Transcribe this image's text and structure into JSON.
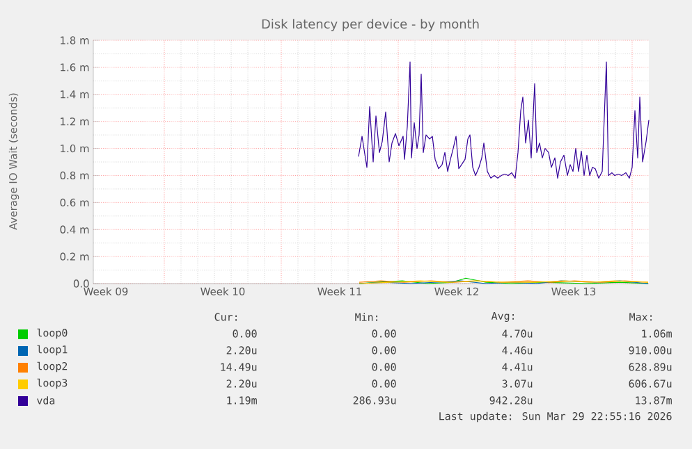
{
  "chart_data": {
    "type": "line",
    "title": "Disk latency per device - by month",
    "ylabel": "Average IO Wait (seconds)",
    "xlim": [
      "2026-02-24T00:00",
      "2026-03-29T06:00"
    ],
    "xticks": [
      {
        "value": "2026-02-24T18:00",
        "label": "Week 09"
      },
      {
        "value": "2026-03-03T18:00",
        "label": "Week 10"
      },
      {
        "value": "2026-03-10T18:00",
        "label": "Week 11"
      },
      {
        "value": "2026-03-17T18:00",
        "label": "Week 12"
      },
      {
        "value": "2026-03-24T18:00",
        "label": "Week 13"
      },
      {
        "value": "2026-02-28T06:00",
        "label": null
      },
      {
        "value": "2026-03-07T06:00",
        "label": null
      },
      {
        "value": "2026-03-14T06:00",
        "label": null
      },
      {
        "value": "2026-03-21T06:00",
        "label": null
      },
      {
        "value": "2026-03-28T06:00",
        "label": null
      }
    ],
    "ylim": [
      0,
      1.8
    ],
    "yticks": [
      {
        "value": 0,
        "label": "0.0"
      },
      {
        "value": 0.2,
        "label": "0.2 m"
      },
      {
        "value": 0.4,
        "label": "0.4 m"
      },
      {
        "value": 0.6,
        "label": "0.6 m"
      },
      {
        "value": 0.8,
        "label": "0.8 m"
      },
      {
        "value": 1.0,
        "label": "1.0 m"
      },
      {
        "value": 1.2,
        "label": "1.2 m"
      },
      {
        "value": 1.4,
        "label": "1.4 m"
      },
      {
        "value": 1.6,
        "label": "1.6 m"
      },
      {
        "value": 1.8,
        "label": "1.8 m"
      }
    ],
    "grid": true,
    "legend": "bottom",
    "series": [
      {
        "name": "loop0",
        "color": "#00cc00",
        "x": [
          "2026-03-11T22:00",
          "2026-03-13T00:00",
          "2026-03-14T12:00",
          "2026-03-16T00:00",
          "2026-03-17T12:00",
          "2026-03-18T07:00",
          "2026-03-19T12:00",
          "2026-03-21T00:00",
          "2026-03-23T00:00",
          "2026-03-25T12:00",
          "2026-03-27T12:00",
          "2026-03-29T05:00"
        ],
        "values": [
          0,
          0.01,
          0.02,
          0,
          0.01,
          0.04,
          0.01,
          0,
          0.01,
          0,
          0.01,
          0
        ]
      },
      {
        "name": "loop1",
        "color": "#0066b3",
        "x": [
          "2026-03-11T22:00",
          "2026-03-13T12:00",
          "2026-03-15T00:00",
          "2026-03-16T12:00",
          "2026-03-18T00:00",
          "2026-03-19T12:00",
          "2026-03-21T00:00",
          "2026-03-22T12:00",
          "2026-03-24T00:00",
          "2026-03-26T00:00",
          "2026-03-27T12:00",
          "2026-03-29T05:00"
        ],
        "values": [
          0,
          0.01,
          0,
          0.01,
          0.02,
          0,
          0.01,
          0,
          0.02,
          0.01,
          0.02,
          0
        ]
      },
      {
        "name": "loop2",
        "color": "#ff8000",
        "x": [
          "2026-03-11T22:00",
          "2026-03-13T05:00",
          "2026-03-14T14:00",
          "2026-03-16T05:00",
          "2026-03-17T14:00",
          "2026-03-19T00:00",
          "2026-03-20T10:00",
          "2026-03-22T00:00",
          "2026-03-23T10:00",
          "2026-03-24T19:00",
          "2026-03-26T10:00",
          "2026-03-27T19:00",
          "2026-03-29T05:00"
        ],
        "values": [
          0.01,
          0.02,
          0.01,
          0.02,
          0.01,
          0.02,
          0.01,
          0.02,
          0.01,
          0.02,
          0.01,
          0.02,
          0.01
        ]
      },
      {
        "name": "loop3",
        "color": "#ffcc00",
        "x": [
          "2026-03-11T22:00",
          "2026-03-13T19:00",
          "2026-03-15T14:00",
          "2026-03-17T05:00",
          "2026-03-18T19:00",
          "2026-03-20T14:00",
          "2026-03-22T10:00",
          "2026-03-24T05:00",
          "2026-03-25T19:00",
          "2026-03-27T05:00",
          "2026-03-29T05:00"
        ],
        "values": [
          0,
          0.01,
          0.02,
          0.01,
          0.02,
          0.01,
          0.01,
          0.02,
          0.01,
          0.02,
          0.01
        ]
      },
      {
        "name": "vda",
        "color": "#330099",
        "x": [
          "2026-03-11T21:00",
          "2026-03-12T02:00",
          "2026-03-12T09:00",
          "2026-03-12T13:00",
          "2026-03-12T18:00",
          "2026-03-12T22:00",
          "2026-03-13T03:00",
          "2026-03-13T07:00",
          "2026-03-13T12:00",
          "2026-03-13T17:00",
          "2026-03-13T21:00",
          "2026-03-14T02:00",
          "2026-03-14T07:00",
          "2026-03-14T13:00",
          "2026-03-14T15:00",
          "2026-03-14T19:00",
          "2026-03-14T23:00",
          "2026-03-15T01:00",
          "2026-03-15T05:00",
          "2026-03-15T09:00",
          "2026-03-15T12:00",
          "2026-03-15T15:00",
          "2026-03-15T18:00",
          "2026-03-15T22:00",
          "2026-03-16T03:00",
          "2026-03-16T07:00",
          "2026-03-16T11:00",
          "2026-03-16T16:00",
          "2026-03-16T21:00",
          "2026-03-17T01:00",
          "2026-03-17T05:00",
          "2026-03-17T09:00",
          "2026-03-17T13:00",
          "2026-03-17T17:00",
          "2026-03-17T21:00",
          "2026-03-18T01:00",
          "2026-03-18T06:00",
          "2026-03-18T10:00",
          "2026-03-18T13:00",
          "2026-03-18T17:00",
          "2026-03-18T21:00",
          "2026-03-19T02:00",
          "2026-03-19T06:00",
          "2026-03-19T09:00",
          "2026-03-19T14:00",
          "2026-03-19T19:00",
          "2026-03-20T00:00",
          "2026-03-20T05:00",
          "2026-03-20T10:00",
          "2026-03-20T15:00",
          "2026-03-20T20:00",
          "2026-03-21T01:00",
          "2026-03-21T06:00",
          "2026-03-21T10:00",
          "2026-03-21T14:00",
          "2026-03-21T17:00",
          "2026-03-21T21:00",
          "2026-03-22T01:00",
          "2026-03-22T05:00",
          "2026-03-22T10:00",
          "2026-03-22T13:00",
          "2026-03-22T17:00",
          "2026-03-22T21:00",
          "2026-03-23T01:00",
          "2026-03-23T06:00",
          "2026-03-23T10:00",
          "2026-03-23T15:00",
          "2026-03-23T19:00",
          "2026-03-23T23:00",
          "2026-03-24T04:00",
          "2026-03-24T09:00",
          "2026-03-24T13:00",
          "2026-03-24T17:00",
          "2026-03-24T21:00",
          "2026-03-25T01:00",
          "2026-03-25T05:00",
          "2026-03-25T09:00",
          "2026-03-25T13:00",
          "2026-03-25T17:00",
          "2026-03-25T21:00",
          "2026-03-26T01:00",
          "2026-03-26T06:00",
          "2026-03-26T11:00",
          "2026-03-26T17:00",
          "2026-03-26T20:00",
          "2026-03-27T01:00",
          "2026-03-27T05:00",
          "2026-03-27T10:00",
          "2026-03-27T15:00",
          "2026-03-27T21:00",
          "2026-03-28T02:00",
          "2026-03-28T06:00",
          "2026-03-28T10:00",
          "2026-03-28T14:00",
          "2026-03-28T17:00",
          "2026-03-28T21:00",
          "2026-03-29T02:00",
          "2026-03-29T06:00"
        ],
        "values": [
          0.94,
          1.09,
          0.86,
          1.31,
          0.9,
          1.24,
          0.97,
          1.05,
          1.27,
          0.9,
          1.04,
          1.11,
          1.02,
          1.09,
          0.92,
          1.16,
          1.64,
          0.93,
          1.19,
          1.0,
          1.1,
          1.55,
          0.97,
          1.1,
          1.07,
          1.09,
          0.92,
          0.85,
          0.88,
          0.97,
          0.83,
          0.92,
          1.0,
          1.09,
          0.85,
          0.88,
          0.92,
          1.07,
          1.1,
          0.86,
          0.8,
          0.86,
          0.93,
          1.04,
          0.83,
          0.78,
          0.8,
          0.78,
          0.8,
          0.81,
          0.8,
          0.82,
          0.78,
          0.97,
          1.28,
          1.38,
          1.04,
          1.21,
          0.93,
          1.48,
          0.97,
          1.04,
          0.93,
          1.0,
          0.97,
          0.86,
          0.93,
          0.78,
          0.9,
          0.95,
          0.8,
          0.88,
          0.83,
          1.0,
          0.83,
          0.98,
          0.8,
          0.95,
          0.8,
          0.86,
          0.85,
          0.78,
          0.83,
          1.64,
          0.8,
          0.82,
          0.8,
          0.81,
          0.8,
          0.82,
          0.78,
          0.86,
          1.28,
          0.93,
          1.38,
          0.9,
          1.05,
          1.21
        ]
      }
    ],
    "annotations": [
      "Cur:",
      "Min:",
      "Avg:",
      "Max:",
      "0.00",
      "0.00",
      "4.70u",
      "1.06m",
      "2.20u",
      "0.00",
      "4.46u",
      "910.00u",
      "14.49u",
      "0.00",
      "4.41u",
      "628.89u",
      "2.20u",
      "0.00",
      "3.07u",
      "606.67u",
      "1.19m",
      "286.93u",
      "942.28u",
      "13.87m",
      "Last update: Sun Mar 29 22:55:16 2026"
    ]
  }
}
